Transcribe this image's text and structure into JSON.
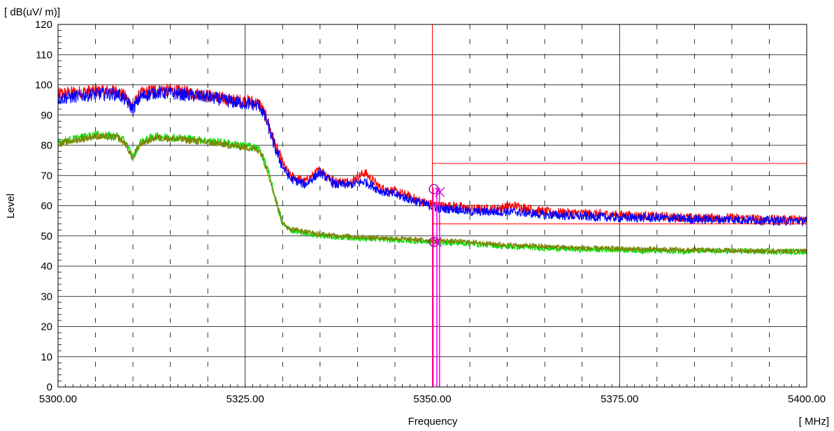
{
  "chart_data": {
    "type": "line",
    "ylabel": "Level",
    "yunit": "[ dB(uV/ m)]",
    "xlabel": "Frequency",
    "xunit": "[ MHz]",
    "xlim": [
      5300.0,
      5400.0
    ],
    "ylim": [
      0,
      120
    ],
    "xticks": [
      "5300.00",
      "5325.00",
      "5350.00",
      "5375.00",
      "5400.00"
    ],
    "xtick_values": [
      5300,
      5325,
      5350,
      5375,
      5400
    ],
    "yticks": [
      0,
      10,
      20,
      30,
      40,
      50,
      60,
      70,
      80,
      90,
      100,
      110,
      120
    ],
    "grid": true,
    "series": [
      {
        "color": "#ff0000",
        "role": "peak-horizontal",
        "x": [
          5300,
          5302,
          5305,
          5308,
          5309,
          5310,
          5311,
          5313,
          5316,
          5320,
          5323,
          5326,
          5327,
          5328,
          5329,
          5330,
          5331,
          5333,
          5335,
          5337,
          5339,
          5341,
          5343,
          5346,
          5349,
          5351,
          5353,
          5355,
          5358,
          5361,
          5365,
          5370,
          5375,
          5380,
          5385,
          5390,
          5395,
          5400
        ],
        "y": [
          97,
          97.5,
          98,
          98,
          96,
          93,
          97,
          98.5,
          98,
          96.5,
          95,
          94.5,
          93.5,
          88,
          80,
          74,
          70,
          68,
          72,
          68,
          68,
          71,
          66,
          64,
          61,
          60,
          60,
          59,
          59,
          60,
          58,
          57.5,
          57,
          56.5,
          56,
          56,
          55.5,
          55.5
        ]
      },
      {
        "color": "#0000ff",
        "role": "peak-vertical",
        "x": [
          5300,
          5302,
          5305,
          5308,
          5309,
          5310,
          5311,
          5313,
          5316,
          5320,
          5323,
          5326,
          5327,
          5328,
          5329,
          5330,
          5331,
          5333,
          5335,
          5337,
          5339,
          5341,
          5343,
          5346,
          5349,
          5351,
          5353,
          5355,
          5358,
          5361,
          5365,
          5370,
          5375,
          5380,
          5385,
          5390,
          5395,
          5400
        ],
        "y": [
          95.5,
          96,
          97,
          97,
          95,
          92,
          96,
          97.5,
          97,
          96,
          94.5,
          93.5,
          93,
          87,
          79,
          73,
          69,
          67,
          71,
          67,
          67,
          68,
          65,
          63,
          60.5,
          59,
          59,
          58,
          58,
          58,
          57,
          56.5,
          56,
          56,
          55.5,
          55.5,
          55,
          55
        ]
      },
      {
        "color": "#00dd00",
        "role": "average-vertical",
        "x": [
          5300,
          5302,
          5305,
          5308,
          5309,
          5310,
          5311,
          5313,
          5316,
          5320,
          5323,
          5326,
          5327,
          5328,
          5329,
          5330,
          5331,
          5333,
          5335,
          5338,
          5342,
          5346,
          5350,
          5355,
          5360,
          5365,
          5370,
          5375,
          5380,
          5385,
          5390,
          5395,
          5400
        ],
        "y": [
          81,
          82,
          83.5,
          83,
          81,
          76,
          81,
          83,
          82.5,
          81.5,
          80.5,
          79.5,
          78.5,
          72,
          63,
          54,
          52,
          51,
          50,
          49.5,
          49,
          48.5,
          48,
          47.5,
          46.5,
          46,
          45.5,
          45.5,
          45,
          45,
          45,
          44.8,
          44.8
        ]
      },
      {
        "color": "#808000",
        "role": "average-horizontal",
        "x": [
          5300,
          5302,
          5305,
          5308,
          5309,
          5310,
          5311,
          5313,
          5316,
          5320,
          5323,
          5326,
          5327,
          5328,
          5329,
          5330,
          5331,
          5333,
          5335,
          5338,
          5342,
          5346,
          5350,
          5355,
          5360,
          5365,
          5370,
          5375,
          5380,
          5385,
          5390,
          5395,
          5400
        ],
        "y": [
          80.5,
          81.5,
          83,
          82.5,
          80.5,
          75.5,
          80.5,
          82.5,
          82,
          81,
          80,
          79,
          78,
          71.5,
          62.5,
          54,
          52.5,
          51.5,
          50.5,
          50,
          49.5,
          49,
          48.5,
          48,
          47,
          46.5,
          46,
          45.8,
          45.5,
          45.3,
          45.2,
          45,
          45
        ]
      }
    ],
    "limit_lines": [
      {
        "color": "#ff0000",
        "y": 74,
        "x_from": 5350,
        "x_to": 5400
      },
      {
        "color": "#ff0000",
        "y": 54,
        "x_from": 5350,
        "x_to": 5400
      }
    ],
    "vertical_lines": [
      {
        "color": "#ff0000",
        "x": 5350
      },
      {
        "color": "#ff00ff",
        "x": 5350.1
      },
      {
        "color": "#ff00ff",
        "x": 5350.6
      },
      {
        "color": "#ff00ff",
        "x": 5350.95
      }
    ],
    "markers": [
      {
        "shape": "circle",
        "color": "#a000a0",
        "x": 5350.2,
        "y": 65.5
      },
      {
        "shape": "x",
        "color": "#cc00cc",
        "x": 5351.0,
        "y": 64.5
      },
      {
        "shape": "circle",
        "color": "#a000a0",
        "x": 5350.2,
        "y": 48
      },
      {
        "shape": "x",
        "color": "#cc00cc",
        "x": 5350.6,
        "y": 48
      }
    ]
  }
}
